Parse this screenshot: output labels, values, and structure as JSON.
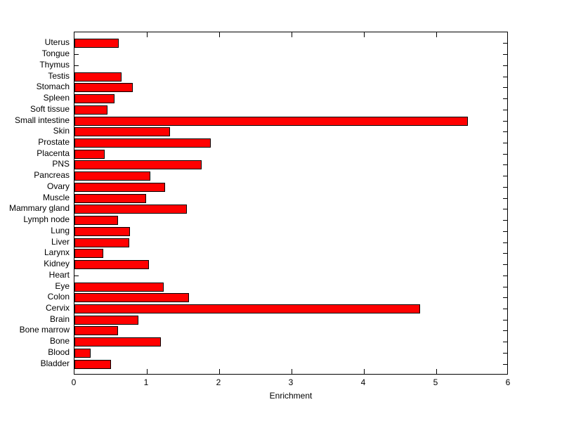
{
  "chart_data": {
    "type": "bar",
    "orientation": "horizontal",
    "title": "",
    "xlabel": "Enrichment",
    "ylabel": "",
    "xlim": [
      0,
      6
    ],
    "xticks": [
      0,
      1,
      2,
      3,
      4,
      5,
      6
    ],
    "grid": false,
    "legend": null,
    "bar_color": "#ff0000",
    "bar_edge_color": "#000000",
    "axis_color": "#000000",
    "background_color": "#ffffff",
    "categories_top_to_bottom": [
      "Uterus",
      "Tongue",
      "Thymus",
      "Testis",
      "Stomach",
      "Spleen",
      "Soft tissue",
      "Small intestine",
      "Skin",
      "Prostate",
      "Placenta",
      "PNS",
      "Pancreas",
      "Ovary",
      "Muscle",
      "Mammary gland",
      "Lymph node",
      "Lung",
      "Liver",
      "Larynx",
      "Kidney",
      "Heart",
      "Eye",
      "Colon",
      "Cervix",
      "Brain",
      "Bone marrow",
      "Bone",
      "Blood",
      "Bladder"
    ],
    "values_top_to_bottom": [
      0.61,
      0,
      0,
      0.65,
      0.81,
      0.56,
      0.46,
      5.45,
      1.32,
      1.89,
      0.42,
      1.76,
      1.05,
      1.26,
      0.99,
      1.56,
      0.6,
      0.77,
      0.76,
      0.4,
      1.03,
      0,
      1.24,
      1.59,
      4.79,
      0.89,
      0.6,
      1.2,
      0.22,
      0.51
    ]
  }
}
